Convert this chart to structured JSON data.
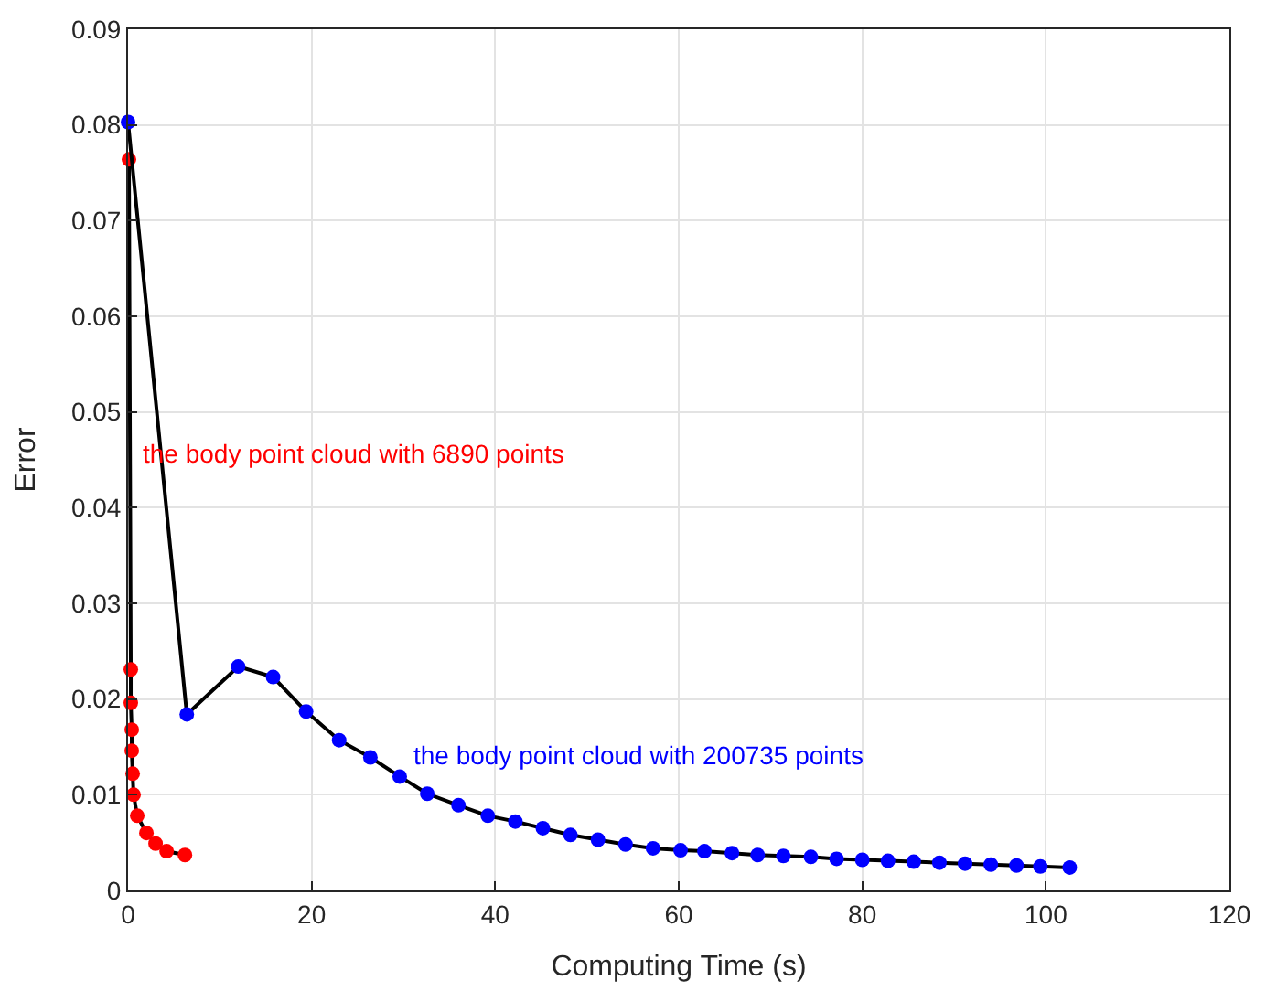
{
  "chart_data": {
    "type": "line",
    "xlabel": "Computing Time (s)",
    "ylabel": "Error",
    "xlim": [
      0,
      120
    ],
    "xticks": [
      0,
      20,
      40,
      60,
      80,
      100,
      120
    ],
    "ylim": [
      0,
      0.09
    ],
    "yticks": [
      0,
      0.01,
      0.02,
      0.03,
      0.04,
      0.05,
      0.06,
      0.07,
      0.08,
      0.09
    ],
    "grid": true,
    "legend": false,
    "marker": "circle",
    "line_style": "solid",
    "series": [
      {
        "name": "the body point cloud with 6890 points",
        "color": "#ff0000",
        "x": [
          0.1,
          0.3,
          0.3,
          0.4,
          0.4,
          0.5,
          0.6,
          1.0,
          2.0,
          3.0,
          4.2,
          6.2
        ],
        "values": [
          0.0764,
          0.0231,
          0.0196,
          0.0168,
          0.0146,
          0.0122,
          0.01,
          0.0078,
          0.006,
          0.0049,
          0.0041,
          0.0037
        ]
      },
      {
        "name": "the body point cloud with 200735 points",
        "color": "#0000ff",
        "x": [
          0,
          6.4,
          12,
          15.8,
          19.4,
          23,
          26.4,
          29.6,
          32.6,
          36,
          39.2,
          42.2,
          45.2,
          48.2,
          51.2,
          54.2,
          57.2,
          60.2,
          62.8,
          65.8,
          68.6,
          71.4,
          74.4,
          77.2,
          80,
          82.8,
          85.6,
          88.4,
          91.2,
          94,
          96.8,
          99.4,
          102.6
        ],
        "values": [
          0.0803,
          0.0184,
          0.0234,
          0.0223,
          0.0187,
          0.0157,
          0.0139,
          0.0119,
          0.0101,
          0.0089,
          0.0078,
          0.0072,
          0.0065,
          0.0058,
          0.0053,
          0.0048,
          0.0044,
          0.0042,
          0.0041,
          0.0039,
          0.0037,
          0.0036,
          0.0035,
          0.0033,
          0.0032,
          0.0031,
          0.003,
          0.0029,
          0.0028,
          0.0027,
          0.0026,
          0.0025,
          0.0024
        ]
      }
    ]
  }
}
